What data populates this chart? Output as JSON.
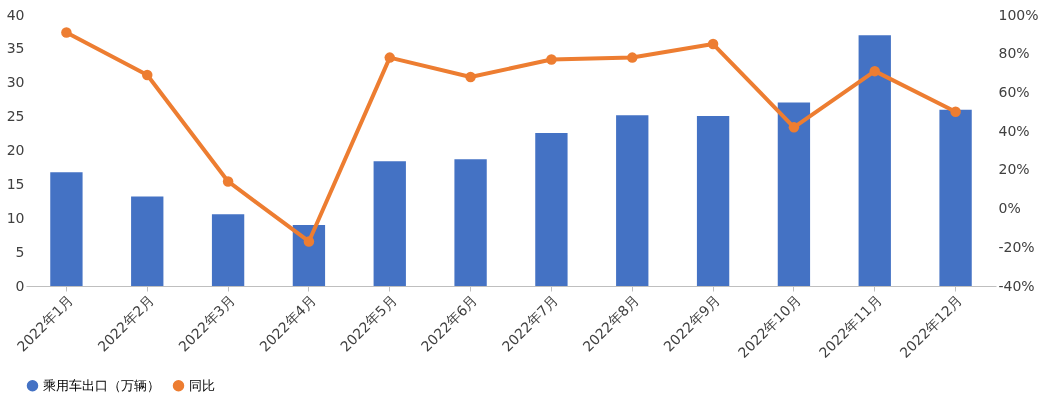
{
  "chart_data": {
    "type": "bar",
    "categories": [
      "2022年1月",
      "2022年2月",
      "2022年3月",
      "2022年4月",
      "2022年5月",
      "2022年6月",
      "2022年7月",
      "2022年8月",
      "2022年9月",
      "2022年10月",
      "2022年11月",
      "2022年12月"
    ],
    "series": [
      {
        "name": "乘用车出口（万辆）",
        "color": "#4472c4",
        "values": [
          16.8,
          13.2,
          10.6,
          9.0,
          18.4,
          18.7,
          22.6,
          25.2,
          25.1,
          27.1,
          37.0,
          26.0
        ]
      },
      {
        "name": "同比",
        "type": "line",
        "axis": "y2",
        "color": "#ed7d31",
        "values": [
          91,
          69,
          14,
          -17,
          78,
          68,
          77,
          78,
          85,
          42,
          71,
          50
        ]
      }
    ],
    "ylim": [
      0,
      40
    ],
    "yticks": [
      0,
      5,
      10,
      15,
      20,
      25,
      30,
      35,
      40
    ],
    "y2lim": [
      -40,
      100
    ],
    "y2ticks": [
      {
        "value": -40,
        "label": "-40%"
      },
      {
        "value": -20,
        "label": "-20%"
      },
      {
        "value": 0,
        "label": "0%"
      },
      {
        "value": 20,
        "label": "20%"
      },
      {
        "value": 40,
        "label": "40%"
      },
      {
        "value": 60,
        "label": "60%"
      },
      {
        "value": 80,
        "label": "80%"
      },
      {
        "value": 100,
        "label": "100%"
      }
    ],
    "grid": false,
    "legend": "bottom",
    "marker": "circle"
  }
}
